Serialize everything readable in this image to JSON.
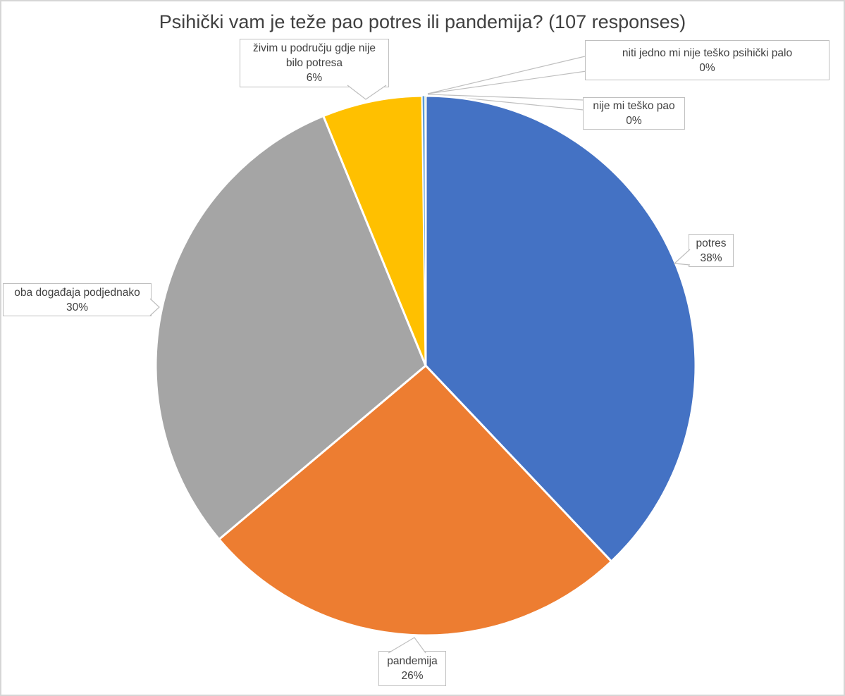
{
  "chart": {
    "title": "Psihički vam je teže pao potres ili pandemija? (107 responses)"
  },
  "chart_data": {
    "type": "pie",
    "title": "Psihički vam je teže pao potres ili pandemija? (107 responses)",
    "responses": 107,
    "unit": "percent",
    "start_angle_deg": 0,
    "direction": "clockwise",
    "legend_position": "none",
    "label_style": "callout-boxes-with-leader-lines",
    "slices": [
      {
        "key": "potres",
        "label": "potres",
        "pct": 38,
        "pct_label": "38%",
        "color": "#4472C4"
      },
      {
        "key": "pandemija",
        "label": "pandemija",
        "pct": 26,
        "pct_label": "26%",
        "color": "#ED7D31"
      },
      {
        "key": "oba-dogadaja-podjednako",
        "label": "oba događaja podjednako",
        "pct": 30,
        "pct_label": "30%",
        "color": "#A5A5A5"
      },
      {
        "key": "zivim-u-podrucju-gdje-nije-bilo-potresa",
        "label": "živim u području gdje nije bilo potresa",
        "label_lines": [
          "živim u području gdje nije",
          "bilo potresa"
        ],
        "pct": 6,
        "pct_label": "6%",
        "color": "#FFC000"
      },
      {
        "key": "niti-jedno-mi-nije-tesko-psihicki-palo",
        "label": "niti jedno mi nije teško psihički palo",
        "pct": 0,
        "pct_label": "0%",
        "color": "#5B9BD5"
      },
      {
        "key": "nije-mi-tesko-pao",
        "label": "nije mi teško pao",
        "pct": 0,
        "pct_label": "0%",
        "color": "#70AD47"
      }
    ]
  },
  "colors": {
    "background": "#FFFFFF",
    "frame_border": "#D6D6D6",
    "callout_border": "#BFBFBF",
    "text": "#404040",
    "slice_separator": "#FFFFFF"
  }
}
